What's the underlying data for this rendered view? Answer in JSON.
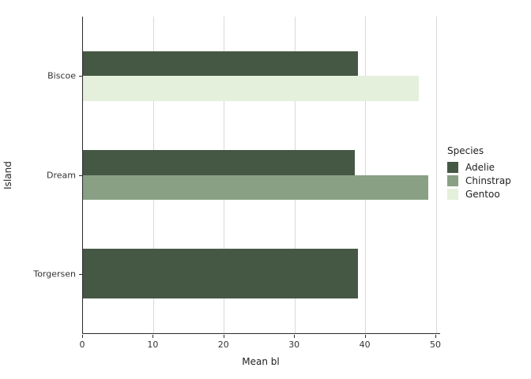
{
  "figure": {
    "xlabel": "Mean bl",
    "ylabel": "Island",
    "legend_title": "Species"
  },
  "colors": {
    "adelie": "#455844",
    "chinstrap": "#8aa085",
    "gentoo": "#e4f0db",
    "gridline": "#d9d9d9",
    "axis_line": "#2b2b2b",
    "tick_text": "#333333",
    "background": "#ffffff"
  },
  "chart_data": {
    "type": "bar",
    "orientation": "horizontal",
    "title": "",
    "xlabel": "Mean bl",
    "ylabel": "Island",
    "categories": [
      "Biscoe",
      "Dream",
      "Torgersen"
    ],
    "series": [
      {
        "name": "Adelie",
        "color": "#455844",
        "values": [
          38.98,
          38.5,
          38.95
        ]
      },
      {
        "name": "Chinstrap",
        "color": "#8aa085",
        "values": [
          null,
          48.83,
          null
        ]
      },
      {
        "name": "Gentoo",
        "color": "#e4f0db",
        "values": [
          47.5,
          null,
          null
        ]
      }
    ],
    "xlim": [
      0,
      50
    ],
    "xticks": [
      0,
      10,
      20,
      30,
      40,
      50
    ],
    "grid": "vertical major gridlines only",
    "bar_width_fraction": 0.5,
    "dodged": true,
    "legend": {
      "title": "Species",
      "position": "right",
      "entries": [
        "Adelie",
        "Chinstrap",
        "Gentoo"
      ]
    }
  }
}
